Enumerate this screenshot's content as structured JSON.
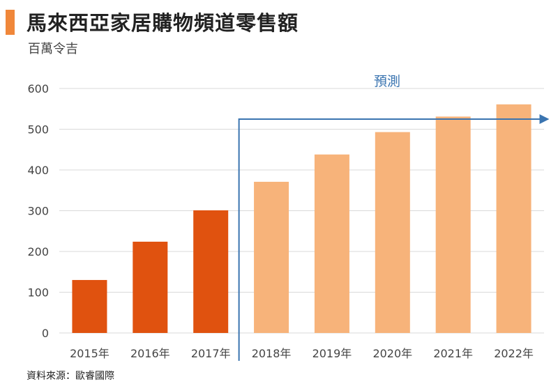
{
  "header": {
    "title": "馬來西亞家居購物頻道零售額",
    "unit": "百萬令吉"
  },
  "source": "資料來源：歐睿國際",
  "colors": {
    "accent": "#f0873a",
    "actual": "#e0520f",
    "forecast": "#f7b37a",
    "forecast_arrow": "#3a74b0",
    "grid": "#d9d9d9"
  },
  "chart_data": {
    "type": "bar",
    "title": "馬來西亞家居購物頻道零售額",
    "ylabel": "百萬令吉",
    "xlabel": "",
    "categories": [
      "2015年",
      "2016年",
      "2017年",
      "2018年",
      "2019年",
      "2020年",
      "2021年",
      "2022年"
    ],
    "values": [
      130,
      224,
      301,
      371,
      438,
      493,
      531,
      561
    ],
    "bar_kind": [
      "actual",
      "actual",
      "actual",
      "forecast",
      "forecast",
      "forecast",
      "forecast",
      "forecast"
    ],
    "ylim": [
      0,
      600
    ],
    "yticks": [
      "0",
      "100",
      "200",
      "300",
      "400",
      "500",
      "600"
    ],
    "grid": true,
    "annotation": "預測"
  }
}
